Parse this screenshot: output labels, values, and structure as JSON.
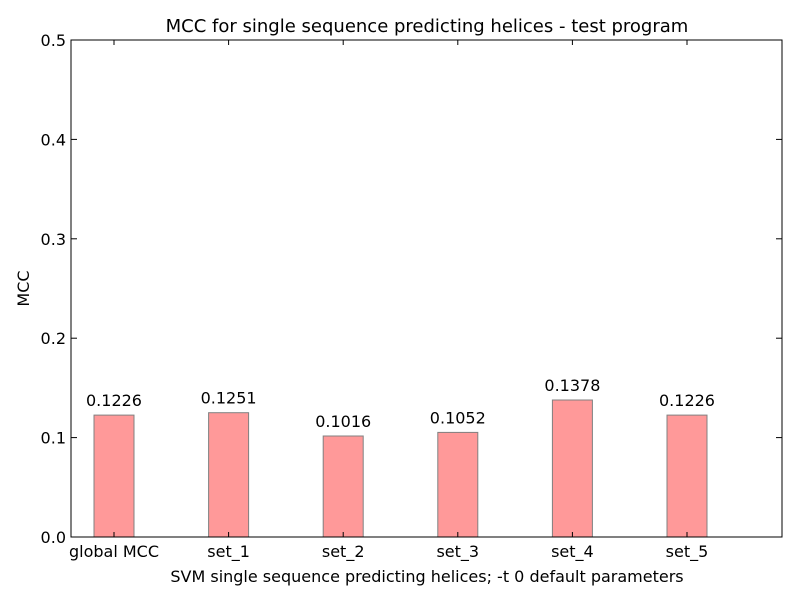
{
  "chart_data": {
    "type": "bar",
    "title": "MCC for single sequence predicting helices - test program",
    "xlabel": "SVM single sequence predicting helices; -t 0 default parameters",
    "ylabel": "MCC",
    "categories": [
      "global MCC",
      "set_1",
      "set_2",
      "set_3",
      "set_4",
      "set_5"
    ],
    "values": [
      0.1226,
      0.1251,
      0.1016,
      0.1052,
      0.1378,
      0.1226
    ],
    "value_labels": [
      "0.1226",
      "0.1251",
      "0.1016",
      "0.1052",
      "0.1378",
      "0.1226"
    ],
    "ylim": [
      0,
      0.5
    ],
    "yticks": [
      0.0,
      0.1,
      0.2,
      0.3,
      0.4,
      0.5
    ],
    "ytick_labels": [
      "0.0",
      "0.1",
      "0.2",
      "0.3",
      "0.4",
      "0.5"
    ],
    "grid": false,
    "legend": "none",
    "bar_color": "#ff9999",
    "bar_edge_color": "#808080"
  }
}
